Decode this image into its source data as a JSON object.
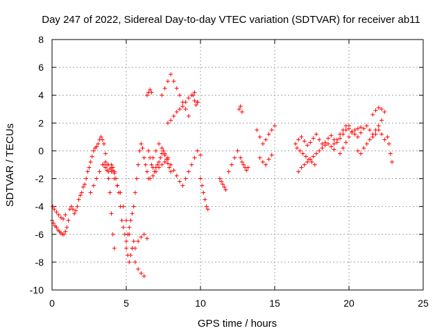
{
  "chart_data": {
    "type": "scatter",
    "title": "Day 247 of 2022, Sidereal Day-to-day VTEC variation (SDTVAR) for receiver ab11",
    "xlabel": "GPS time / hours",
    "ylabel": "SDTVAR / TECUs",
    "xlim": [
      0,
      25
    ],
    "ylim": [
      -10,
      8
    ],
    "xticks": [
      "0",
      "5",
      "10",
      "15",
      "20",
      "25"
    ],
    "yticks": [
      "-10",
      "-8",
      "-6",
      "-4",
      "-2",
      "0",
      "2",
      "4",
      "6",
      "8"
    ],
    "grid": true,
    "marker": "+",
    "series": [
      {
        "name": "SDTVAR",
        "color": "#ff0000",
        "x": [
          0.0,
          0.1,
          0.2,
          0.3,
          0.4,
          0.5,
          0.6,
          0.7,
          0.8,
          0.9,
          1.0,
          1.1,
          0.05,
          0.15,
          0.3,
          0.45,
          0.6,
          0.75,
          0.9,
          1.2,
          1.3,
          1.4,
          1.5,
          1.6,
          1.7,
          1.8,
          1.9,
          2.0,
          2.1,
          2.2,
          2.3,
          2.4,
          2.5,
          2.6,
          2.7,
          2.8,
          2.9,
          3.0,
          3.1,
          3.2,
          3.3,
          3.4,
          3.5,
          3.6,
          3.7,
          3.8,
          3.9,
          4.0,
          4.1,
          4.2,
          2.6,
          2.8,
          3.0,
          3.2,
          3.4,
          3.6,
          3.8,
          4.0,
          4.2,
          4.4,
          3.5,
          3.6,
          3.7,
          3.8,
          3.9,
          4.0,
          4.1,
          4.2,
          4.0,
          4.1,
          4.2,
          4.3,
          4.4,
          4.5,
          4.6,
          4.7,
          4.8,
          4.9,
          5.0,
          5.1,
          5.2,
          5.3,
          5.4,
          5.5,
          4.6,
          4.8,
          5.0,
          5.2,
          5.4,
          5.6,
          5.8,
          6.0,
          6.2,
          5.0,
          5.1,
          5.2,
          5.3,
          5.4,
          5.5,
          5.6,
          5.7,
          5.8,
          5.9,
          6.0,
          6.1,
          6.2,
          6.3,
          6.4,
          6.5,
          5.6,
          5.8,
          6.0,
          6.2,
          6.4,
          6.5,
          6.6,
          6.7,
          6.8,
          6.9,
          7.0,
          7.1,
          7.2,
          7.3,
          7.4,
          7.5,
          7.6,
          7.7,
          7.8,
          7.9,
          8.0,
          6.6,
          6.8,
          7.0,
          7.2,
          7.4,
          7.6,
          7.8,
          7.4,
          7.6,
          7.8,
          8.0,
          8.2,
          8.4,
          8.6,
          8.8,
          9.0,
          9.2,
          6.4,
          6.5,
          6.6,
          6.7,
          7.8,
          8.0,
          8.2,
          8.4,
          8.6,
          8.8,
          9.0,
          9.2,
          9.4,
          9.6,
          9.8,
          6.8,
          7.0,
          7.2,
          7.4,
          7.6,
          7.8,
          8.0,
          8.2,
          8.4,
          8.6,
          8.8,
          9.0,
          9.2,
          9.4,
          9.6,
          9.8,
          10.0,
          9.5,
          9.6,
          9.7,
          9.8,
          10.0,
          10.1,
          10.2,
          10.3,
          10.4,
          10.5,
          11.3,
          11.4,
          11.5,
          11.6,
          11.7,
          11.9,
          12.1,
          12.3,
          12.5,
          12.6,
          12.7,
          12.8,
          12.7,
          12.8,
          12.9,
          13.0,
          13.1,
          13.2,
          13.8,
          14.0,
          14.2,
          14.4,
          14.6,
          14.8,
          15.0,
          14.0,
          14.2,
          14.4,
          14.6,
          14.8,
          16.4,
          16.6,
          16.8,
          17.0,
          17.2,
          17.4,
          17.6,
          17.8,
          18.0,
          18.2,
          18.4,
          18.6,
          18.8,
          19.0,
          19.2,
          19.4,
          19.6,
          19.8,
          20.0,
          16.6,
          16.8,
          17.0,
          17.2,
          17.4,
          17.6,
          17.8,
          18.0,
          18.2,
          18.4,
          18.6,
          18.8,
          19.0,
          16.5,
          16.7,
          16.9,
          17.1,
          17.3,
          17.5,
          17.7,
          19.0,
          19.2,
          19.4,
          19.6,
          19.8,
          20.0,
          20.2,
          20.4,
          20.6,
          20.8,
          21.0,
          21.2,
          21.4,
          21.6,
          21.8,
          22.0,
          22.2,
          19.4,
          19.6,
          19.8,
          20.0,
          20.2,
          20.4,
          20.6,
          20.8,
          20.6,
          20.8,
          21.0,
          21.2,
          21.4,
          21.6,
          21.8,
          22.0,
          22.2,
          22.4,
          21.6,
          21.8,
          22.0,
          22.2,
          22.4,
          22.6,
          22.7,
          22.8,
          22.9
        ],
        "y": [
          -5.0,
          -5.2,
          -5.4,
          -5.5,
          -5.7,
          -5.8,
          -5.9,
          -6.0,
          -6.0,
          -5.8,
          -5.5,
          -5.0,
          -4.0,
          -4.2,
          -4.4,
          -4.6,
          -4.8,
          -4.9,
          -4.6,
          -4.2,
          -4.0,
          -4.2,
          -4.5,
          -4.3,
          -4.0,
          -3.5,
          -3.2,
          -3.0,
          -2.6,
          -2.4,
          -2.0,
          -1.5,
          -1.2,
          -0.8,
          -0.4,
          0.0,
          0.2,
          0.3,
          0.5,
          0.8,
          1.0,
          0.8,
          0.5,
          -0.2,
          -1.0,
          -2.0,
          -3.0,
          -4.5,
          -6.0,
          -7.0,
          -3.0,
          -2.5,
          -2.0,
          -1.5,
          -1.0,
          -0.8,
          -1.0,
          -1.5,
          -2.0,
          -2.5,
          -1.0,
          -1.2,
          -1.4,
          -1.5,
          -1.3,
          -1.2,
          -1.4,
          -1.6,
          -1.0,
          -1.2,
          -1.5,
          -2.0,
          -2.5,
          -3.0,
          -4.0,
          -5.0,
          -5.5,
          -6.0,
          -7.0,
          -7.5,
          -8.0,
          -7.5,
          -7.0,
          -6.5,
          -3.0,
          -4.0,
          -5.0,
          -6.0,
          -7.0,
          -8.0,
          -8.5,
          -8.8,
          -9.0,
          -6.5,
          -6.0,
          -5.5,
          -5.0,
          -4.5,
          -4.0,
          -3.0,
          -2.0,
          -1.0,
          0.0,
          0.5,
          0.2,
          -0.5,
          -1.0,
          -1.5,
          -2.0,
          -7.0,
          -6.5,
          -6.2,
          -6.0,
          -6.3,
          0.0,
          -0.5,
          -1.0,
          -1.2,
          -1.5,
          -1.2,
          -1.0,
          -0.8,
          -0.5,
          -0.2,
          0.0,
          -0.3,
          -0.6,
          -0.9,
          -1.2,
          -1.5,
          -2.0,
          -1.8,
          -1.5,
          -1.2,
          -1.0,
          -0.8,
          -0.5,
          4.0,
          4.5,
          5.0,
          5.5,
          5.0,
          4.5,
          4.0,
          3.5,
          3.0,
          2.5,
          4.0,
          4.2,
          4.4,
          4.2,
          2.0,
          2.2,
          2.5,
          2.8,
          3.0,
          3.2,
          3.5,
          3.8,
          4.0,
          4.2,
          3.5,
          -0.5,
          0.0,
          0.5,
          0.2,
          -0.2,
          -0.6,
          -1.0,
          -1.4,
          -1.8,
          -2.2,
          -2.5,
          -2.0,
          -1.5,
          -1.0,
          -0.5,
          0.0,
          -0.3,
          4.0,
          3.6,
          3.3,
          3.5,
          -2.0,
          -2.5,
          -3.0,
          -3.5,
          -4.0,
          -4.2,
          -2.0,
          -2.2,
          -2.4,
          -2.6,
          -2.8,
          -1.5,
          -1.0,
          -0.5,
          0.0,
          3.0,
          3.2,
          2.8,
          -0.5,
          -0.8,
          -1.0,
          -1.2,
          -1.4,
          -1.2,
          1.5,
          1.0,
          0.5,
          0.8,
          1.2,
          1.5,
          1.8,
          -0.5,
          -0.8,
          -1.0,
          -0.6,
          -0.3,
          0.5,
          0.8,
          1.0,
          0.7,
          0.4,
          0.6,
          0.9,
          1.2,
          0.8,
          0.5,
          0.6,
          0.9,
          1.1,
          0.8,
          0.6,
          0.9,
          1.2,
          1.5,
          1.8,
          -1.5,
          -1.2,
          -1.0,
          -0.8,
          -0.6,
          -0.4,
          -0.2,
          0.0,
          0.2,
          0.4,
          0.5,
          0.3,
          0.1,
          0.2,
          0.0,
          -0.2,
          -0.4,
          -0.6,
          -0.8,
          -1.0,
          0.5,
          0.8,
          1.2,
          1.5,
          1.8,
          1.6,
          1.4,
          1.2,
          1.0,
          1.3,
          1.6,
          1.8,
          1.5,
          1.2,
          1.5,
          1.8,
          2.2,
          -0.2,
          0.2,
          0.6,
          1.0,
          1.3,
          1.5,
          1.6,
          1.7,
          0.0,
          -0.2,
          0.2,
          0.5,
          0.8,
          1.0,
          1.2,
          1.5,
          1.2,
          0.8,
          2.6,
          2.9,
          3.1,
          3.0,
          2.8,
          1.0,
          0.5,
          -0.2,
          -0.8
        ]
      }
    ]
  }
}
